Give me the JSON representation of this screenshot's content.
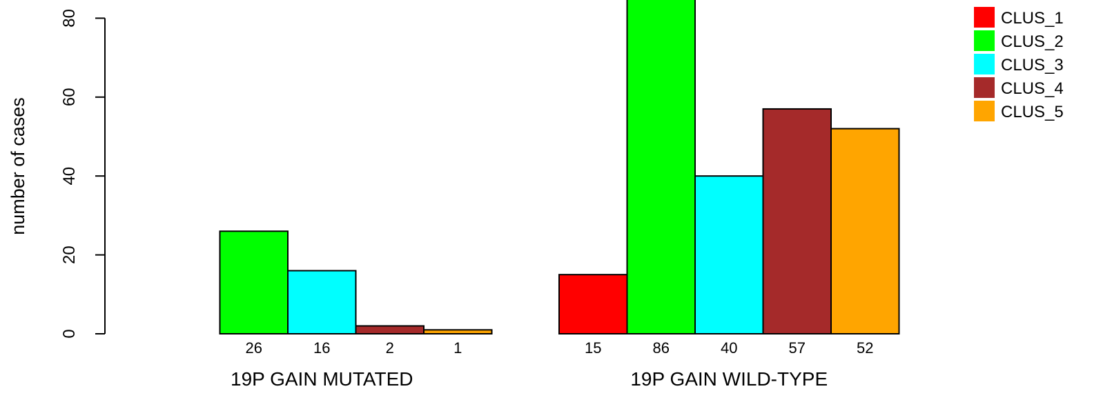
{
  "chart_data": {
    "type": "bar",
    "ylabel": "number of cases",
    "ylim": [
      0,
      80
    ],
    "yticks": [
      0,
      20,
      40,
      60,
      80
    ],
    "groups": [
      {
        "label": "19P GAIN MUTATED",
        "values": [
          0,
          26,
          16,
          2,
          1
        ],
        "bar_labels": [
          "",
          "26",
          "16",
          "2",
          "1"
        ]
      },
      {
        "label": "19P GAIN WILD-TYPE",
        "values": [
          15,
          86,
          40,
          57,
          52
        ],
        "bar_labels": [
          "15",
          "86",
          "40",
          "57",
          "52"
        ]
      }
    ],
    "series": [
      {
        "name": "CLUS_1",
        "color": "#ff0000"
      },
      {
        "name": "CLUS_2",
        "color": "#00ff00"
      },
      {
        "name": "CLUS_3",
        "color": "#00ffff"
      },
      {
        "name": "CLUS_4",
        "color": "#a52a2a"
      },
      {
        "name": "CLUS_5",
        "color": "#ffa500"
      }
    ],
    "legend_position": "top-right",
    "grid": false
  }
}
